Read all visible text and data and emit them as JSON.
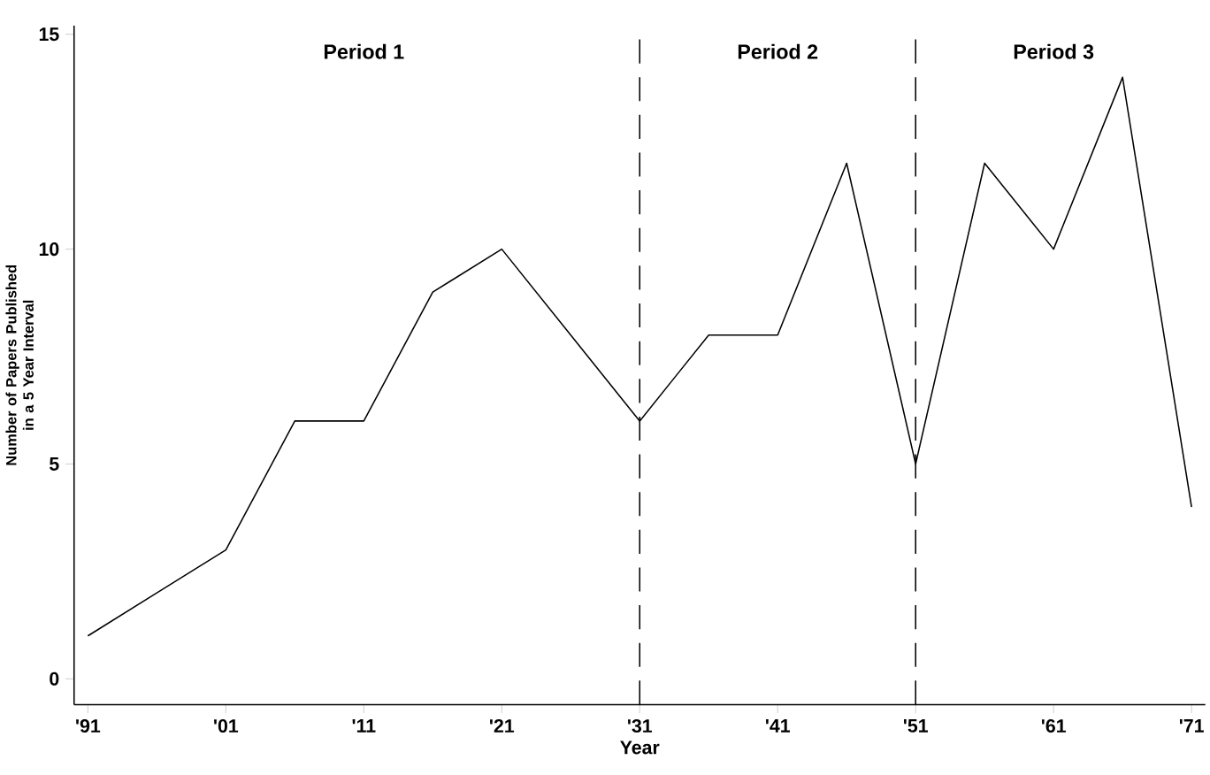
{
  "chart_data": {
    "type": "line",
    "xlabel": "Year",
    "ylabel": "Number of Papers Published in a 5 Year Interval",
    "x": [
      1891,
      1896,
      1901,
      1906,
      1911,
      1916,
      1921,
      1926,
      1931,
      1936,
      1941,
      1946,
      1951,
      1956,
      1961,
      1966,
      1971
    ],
    "series": [
      {
        "color": "#000000",
        "values": [
          1,
          2,
          3,
          6,
          6,
          9,
          10,
          8,
          6,
          8,
          8,
          12,
          5,
          12,
          10,
          14,
          4
        ]
      }
    ],
    "xlim": [
      1890,
      1972
    ],
    "ylim": [
      -0.6,
      15.2
    ],
    "xticks": [
      {
        "value": 1891,
        "label": "'91"
      },
      {
        "value": 1901,
        "label": "'01"
      },
      {
        "value": 1911,
        "label": "'11"
      },
      {
        "value": 1921,
        "label": "'21"
      },
      {
        "value": 1931,
        "label": "'31"
      },
      {
        "value": 1941,
        "label": "'41"
      },
      {
        "value": 1951,
        "label": "'51"
      },
      {
        "value": 1961,
        "label": "'61"
      },
      {
        "value": 1971,
        "label": "'71"
      }
    ],
    "yticks": [
      0,
      5,
      10,
      15
    ],
    "ref_lines": [
      {
        "axis": "x",
        "value": 1931,
        "line_style": "dashed",
        "color": "#000000"
      },
      {
        "axis": "x",
        "value": 1951,
        "line_style": "dashed",
        "color": "#000000"
      }
    ],
    "annotations": [
      "Period 1",
      "Period 2",
      "Period 3"
    ],
    "marker": "none",
    "line_style": "solid"
  }
}
